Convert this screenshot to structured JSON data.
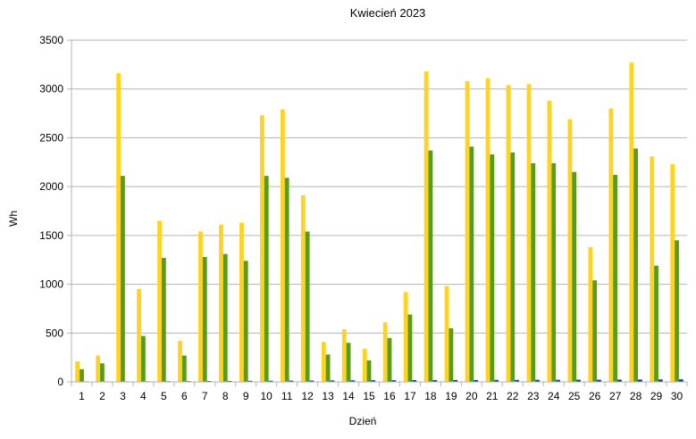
{
  "chart_data": {
    "type": "bar",
    "title": "Kwiecień  2023",
    "xlabel": "Dzień",
    "ylabel": "Wh",
    "ylim": [
      0,
      3500
    ],
    "yticks": [
      0,
      500,
      1000,
      1500,
      2000,
      2500,
      3000,
      3500
    ],
    "grid": true,
    "legend": "none",
    "categories": [
      "1",
      "2",
      "3",
      "4",
      "5",
      "6",
      "7",
      "8",
      "9",
      "10",
      "11",
      "12",
      "13",
      "14",
      "15",
      "16",
      "17",
      "18",
      "19",
      "20",
      "21",
      "22",
      "23",
      "24",
      "25",
      "26",
      "27",
      "28",
      "29",
      "30"
    ],
    "series": [
      {
        "color": "#ffd320",
        "values": [
          210,
          270,
          3160,
          950,
          1650,
          420,
          1540,
          1610,
          1630,
          2730,
          2790,
          1910,
          410,
          540,
          340,
          610,
          920,
          3180,
          980,
          3080,
          3110,
          3040,
          3050,
          2880,
          2690,
          1380,
          2800,
          3270,
          2310,
          2230
        ]
      },
      {
        "color": "#579d1c",
        "values": [
          130,
          190,
          2110,
          470,
          1270,
          270,
          1280,
          1310,
          1240,
          2110,
          2090,
          1540,
          280,
          400,
          220,
          450,
          690,
          2370,
          550,
          2410,
          2330,
          2350,
          2240,
          2240,
          2150,
          1040,
          2120,
          2390,
          1190,
          1450
        ]
      },
      {
        "color": "#004586",
        "values": [
          3,
          4,
          5,
          6,
          7,
          8,
          9,
          10,
          11,
          12,
          13,
          14,
          15,
          16,
          17,
          17,
          18,
          18,
          19,
          19,
          20,
          20,
          21,
          21,
          22,
          22,
          23,
          24,
          25,
          26
        ]
      }
    ]
  }
}
